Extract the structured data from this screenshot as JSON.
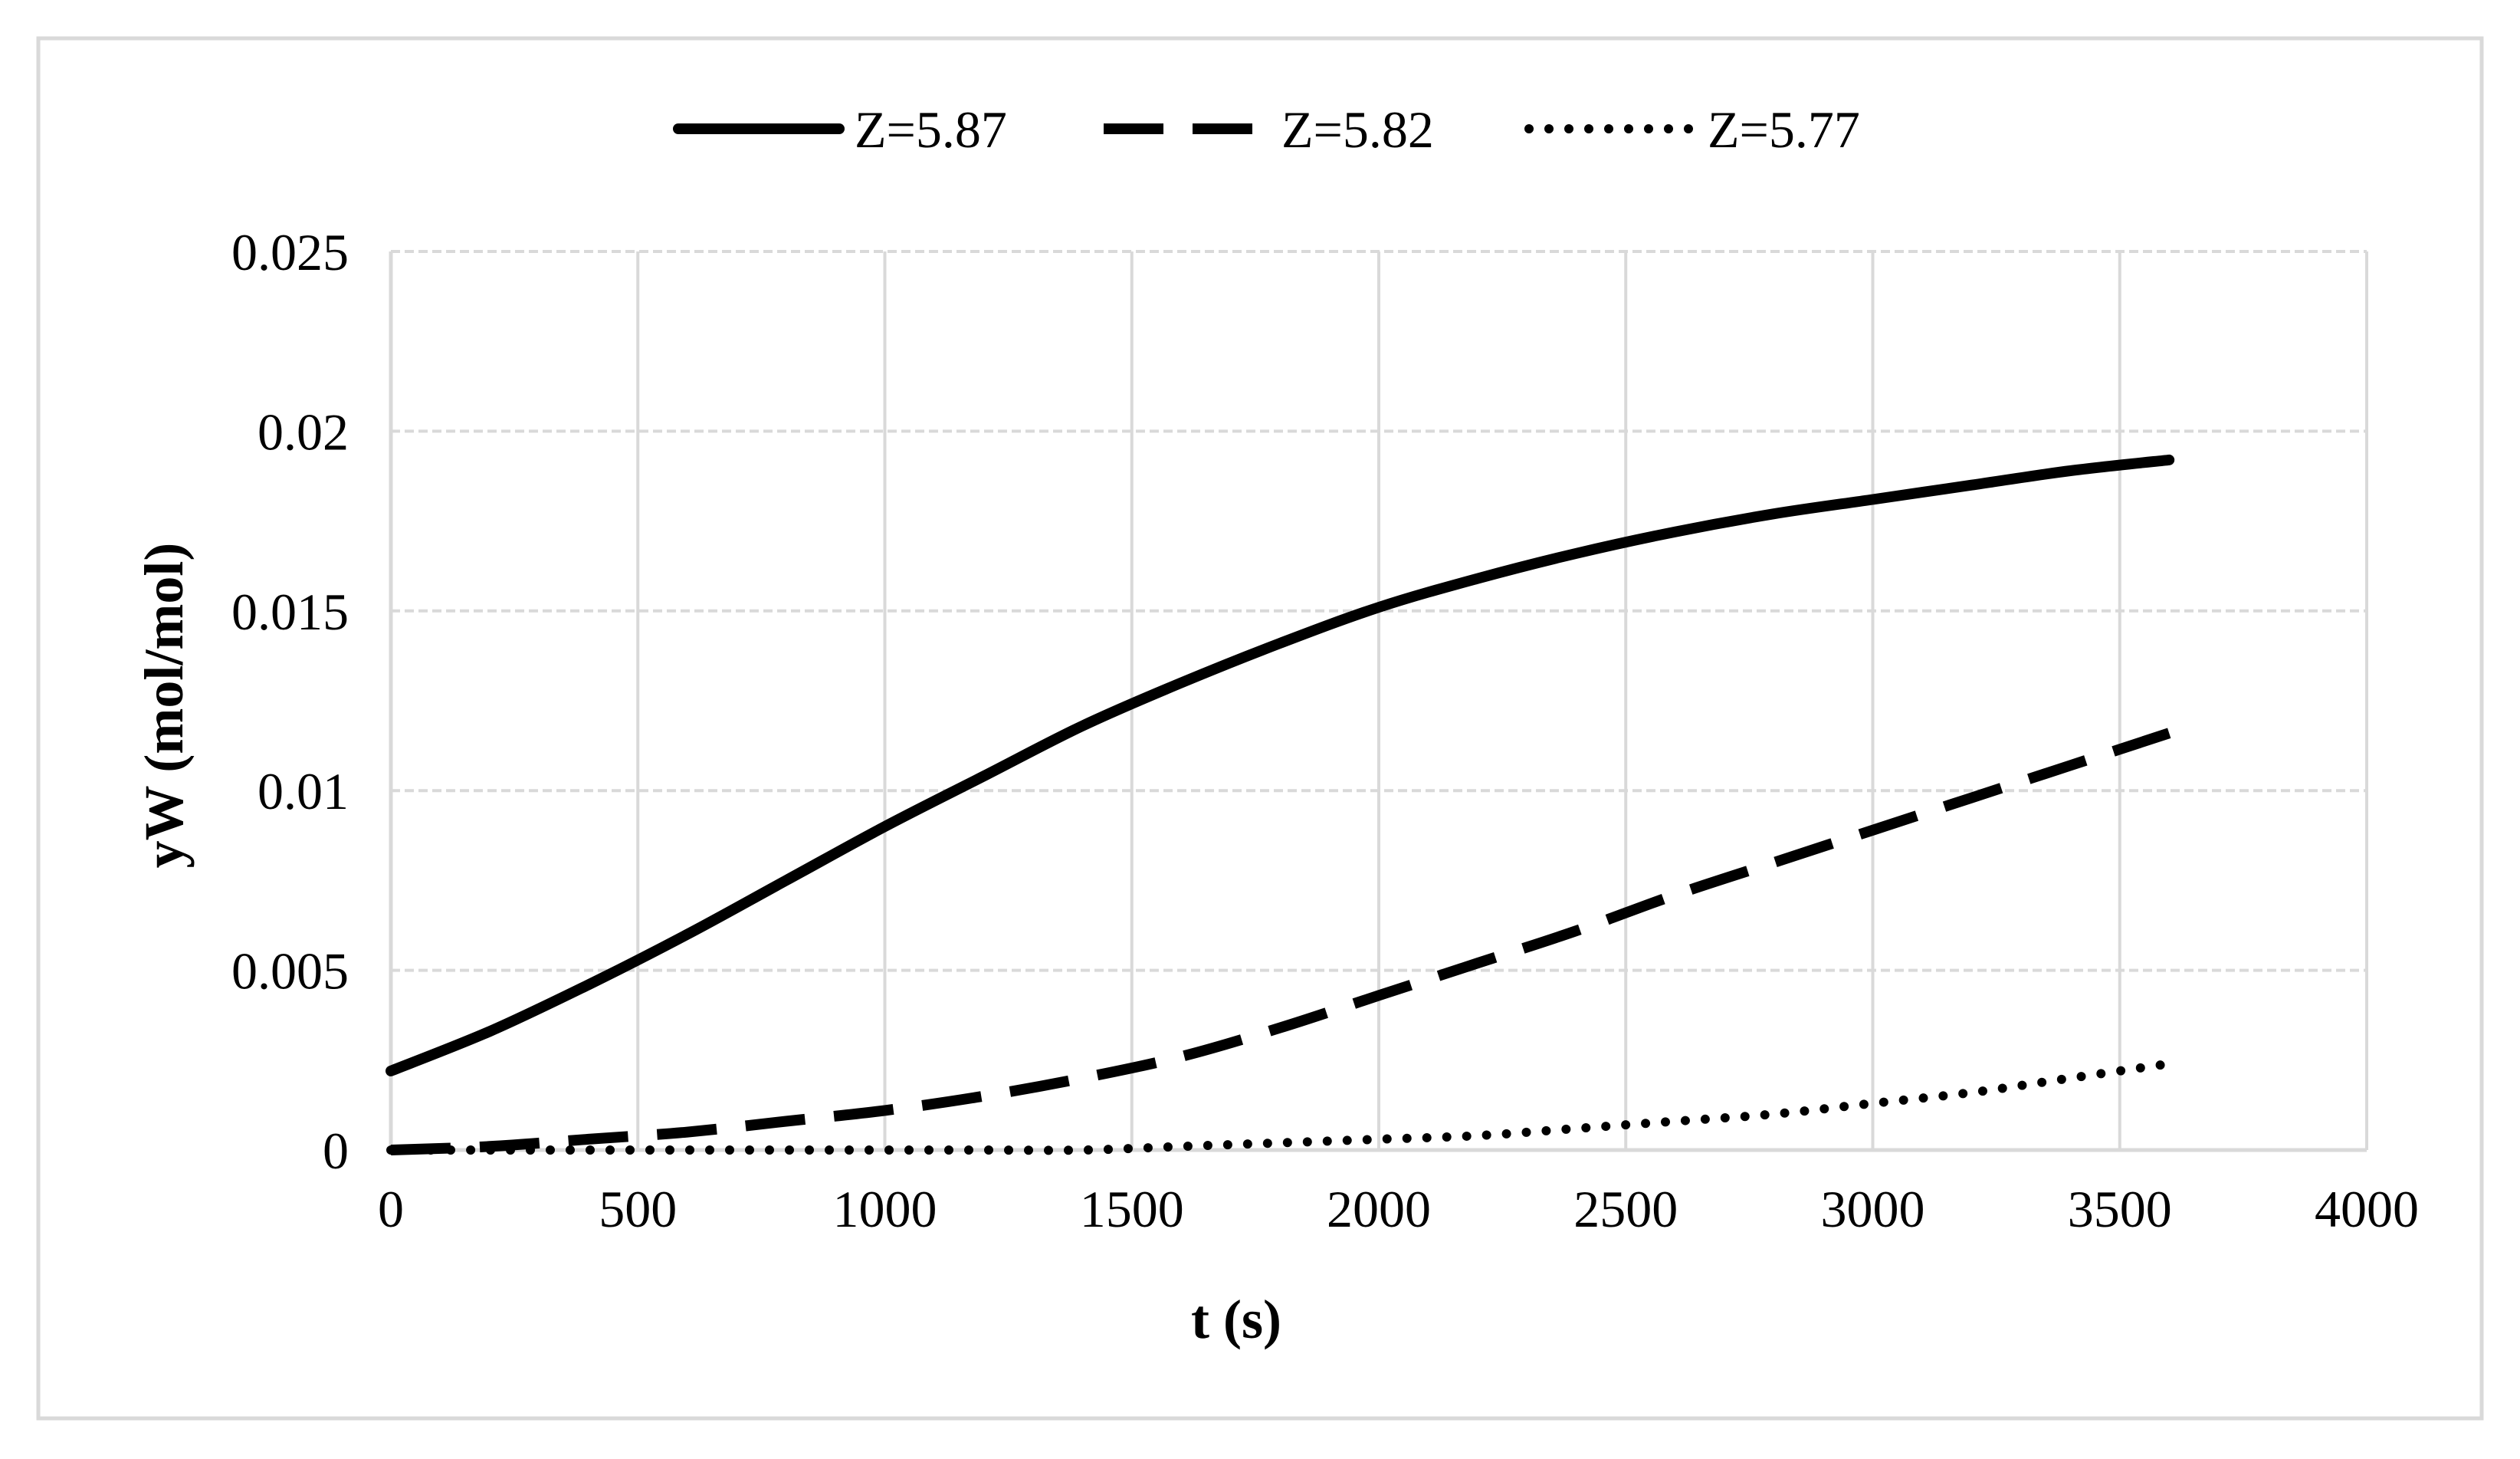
{
  "chart_data": {
    "type": "line",
    "title": "",
    "xlabel": "t (s)",
    "ylabel": "yW (mol/mol)",
    "xlim": [
      0,
      4000
    ],
    "ylim": [
      0,
      0.025
    ],
    "xticks": [
      0,
      500,
      1000,
      1500,
      2000,
      2500,
      3000,
      3500,
      4000
    ],
    "yticks": [
      0,
      0.005,
      0.01,
      0.015,
      0.02,
      0.025
    ],
    "xtick_labels": [
      "0",
      "500",
      "1000",
      "1500",
      "2000",
      "2500",
      "3000",
      "3500",
      "4000"
    ],
    "ytick_labels": [
      "0",
      "0.005",
      "0.01",
      "0.015",
      "0.02",
      "0.025"
    ],
    "grid": true,
    "legend_position": "top-center",
    "colors": {
      "series": "#000000",
      "grid": "#d9d9d9",
      "axis": "#d9d9d9",
      "frame": "#d9d9d9"
    },
    "x": [
      0,
      200,
      400,
      600,
      800,
      1000,
      1200,
      1400,
      1600,
      1800,
      2000,
      2200,
      2400,
      2600,
      2800,
      3000,
      3200,
      3400,
      3600
    ],
    "series": [
      {
        "name": "Z=5.87",
        "style": "solid",
        "values": [
          0.0022,
          0.0033,
          0.0046,
          0.006,
          0.0075,
          0.009,
          0.0104,
          0.0118,
          0.013,
          0.0141,
          0.0151,
          0.0159,
          0.0166,
          0.0172,
          0.0177,
          0.0181,
          0.0185,
          0.0189,
          0.0192
        ]
      },
      {
        "name": "Z=5.82",
        "style": "dashed",
        "values": [
          0.0,
          0.0001,
          0.0003,
          0.0005,
          0.0008,
          0.0011,
          0.0015,
          0.002,
          0.0026,
          0.0034,
          0.0043,
          0.0052,
          0.0061,
          0.0071,
          0.008,
          0.0089,
          0.0098,
          0.0107,
          0.0116
        ]
      },
      {
        "name": "Z=5.77",
        "style": "dotted",
        "values": [
          0.0,
          0.0,
          0.0,
          0.0,
          0.0,
          0.0,
          0.0,
          0.0,
          0.0001,
          0.0002,
          0.0003,
          0.0004,
          0.0006,
          0.0008,
          0.001,
          0.0013,
          0.0016,
          0.002,
          0.0024
        ]
      }
    ]
  }
}
